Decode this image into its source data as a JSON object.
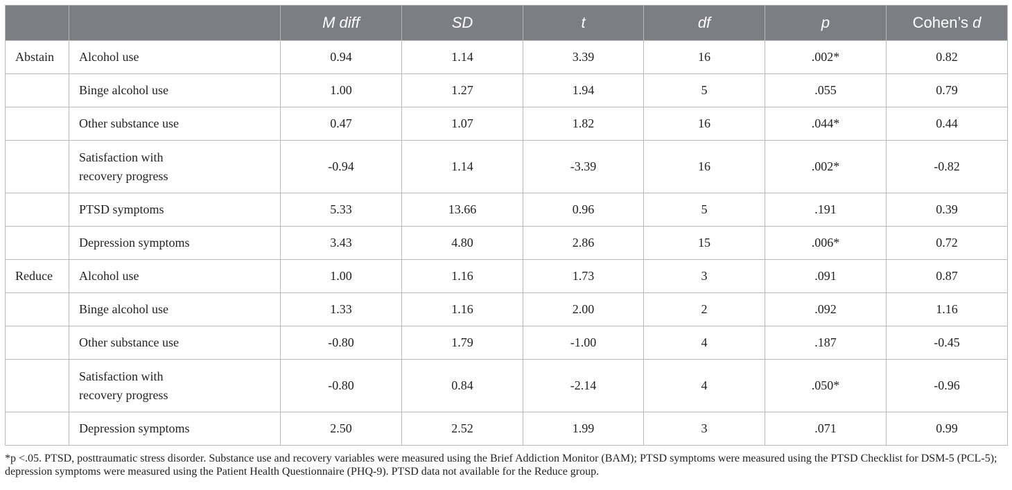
{
  "table": {
    "headers": [
      "",
      "",
      "M diff",
      "SD",
      "t",
      "df",
      "p",
      "Cohen’s d"
    ],
    "rows": [
      {
        "group": "Abstain",
        "variable": "Alcohol use",
        "m_diff": "0.94",
        "sd": "1.14",
        "t": "3.39",
        "df": "16",
        "p": ".002*",
        "d": "0.82"
      },
      {
        "group": "",
        "variable": "Binge alcohol use",
        "m_diff": "1.00",
        "sd": "1.27",
        "t": "1.94",
        "df": "5",
        "p": ".055",
        "d": "0.79"
      },
      {
        "group": "",
        "variable": "Other substance use",
        "m_diff": "0.47",
        "sd": "1.07",
        "t": "1.82",
        "df": "16",
        "p": ".044*",
        "d": "0.44"
      },
      {
        "group": "",
        "variable": "Satisfaction with recovery progress",
        "m_diff": "-0.94",
        "sd": "1.14",
        "t": "-3.39",
        "df": "16",
        "p": ".002*",
        "d": "-0.82"
      },
      {
        "group": "",
        "variable": "PTSD symptoms",
        "m_diff": "5.33",
        "sd": "13.66",
        "t": "0.96",
        "df": "5",
        "p": ".191",
        "d": "0.39"
      },
      {
        "group": "",
        "variable": "Depression symptoms",
        "m_diff": "3.43",
        "sd": "4.80",
        "t": "2.86",
        "df": "15",
        "p": ".006*",
        "d": "0.72"
      },
      {
        "group": "Reduce",
        "variable": "Alcohol use",
        "m_diff": "1.00",
        "sd": "1.16",
        "t": "1.73",
        "df": "3",
        "p": ".091",
        "d": "0.87"
      },
      {
        "group": "",
        "variable": "Binge alcohol use",
        "m_diff": "1.33",
        "sd": "1.16",
        "t": "2.00",
        "df": "2",
        "p": ".092",
        "d": "1.16"
      },
      {
        "group": "",
        "variable": "Other substance use",
        "m_diff": "-0.80",
        "sd": "1.79",
        "t": "-1.00",
        "df": "4",
        "p": ".187",
        "d": "-0.45"
      },
      {
        "group": "",
        "variable": "Satisfaction with recovery progress",
        "m_diff": "-0.80",
        "sd": "0.84",
        "t": "-2.14",
        "df": "4",
        "p": ".050*",
        "d": "-0.96"
      },
      {
        "group": "",
        "variable": "Depression symptoms",
        "m_diff": "2.50",
        "sd": "2.52",
        "t": "1.99",
        "df": "3",
        "p": ".071",
        "d": "0.99"
      }
    ]
  },
  "footnote": "*p <.05. PTSD, posttraumatic stress disorder. Substance use and recovery variables were measured using the Brief Addiction Monitor (BAM); PTSD symptoms were measured using the PTSD Checklist for DSM-5 (PCL-5); depression symptoms were measured using the Patient Health Questionnaire (PHQ-9). PTSD data not available for the Reduce group."
}
